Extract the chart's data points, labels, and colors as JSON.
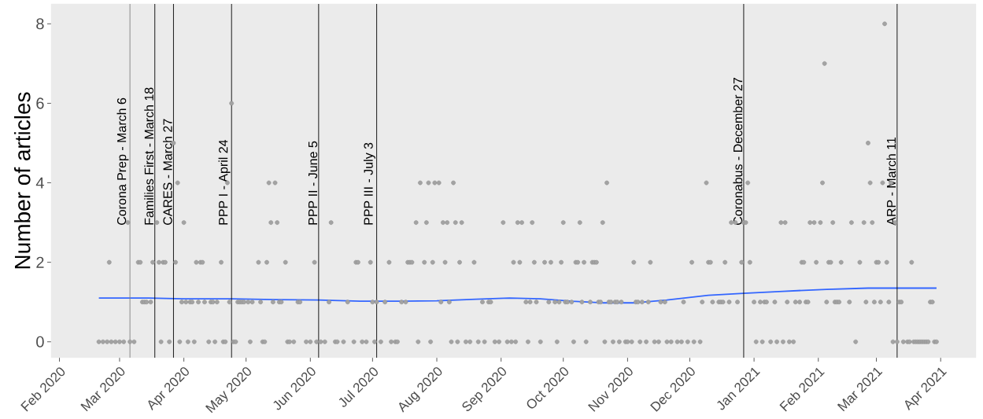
{
  "chart_data": {
    "type": "scatter",
    "ylabel": "Number of articles",
    "xlim": [
      "2020-01-28",
      "2021-04-18"
    ],
    "ylim": [
      -0.4,
      8.5
    ],
    "yticks": [
      0,
      2,
      4,
      6,
      8
    ],
    "xticks": [
      {
        "value": "2020-02-01",
        "label": "Feb 2020"
      },
      {
        "value": "2020-03-01",
        "label": "Mar 2020"
      },
      {
        "value": "2020-04-01",
        "label": "Apr 2020"
      },
      {
        "value": "2020-05-01",
        "label": "May 2020"
      },
      {
        "value": "2020-06-01",
        "label": "Jun 2020"
      },
      {
        "value": "2020-07-01",
        "label": "Jul 2020"
      },
      {
        "value": "2020-08-01",
        "label": "Aug 2020"
      },
      {
        "value": "2020-09-01",
        "label": "Sep 2020"
      },
      {
        "value": "2020-10-01",
        "label": "Oct 2020"
      },
      {
        "value": "2020-11-01",
        "label": "Nov 2020"
      },
      {
        "value": "2020-12-01",
        "label": "Dec 2020"
      },
      {
        "value": "2021-01-01",
        "label": "Jan 2021"
      },
      {
        "value": "2021-02-01",
        "label": "Feb 2021"
      },
      {
        "value": "2021-03-01",
        "label": "Mar 2021"
      },
      {
        "value": "2021-04-01",
        "label": "Apr 2021"
      }
    ],
    "series": [
      {
        "type": "scatter",
        "marker": "circle",
        "color": "#a3a3a3",
        "x": [
          "2020-02-20",
          "2020-02-22",
          "2020-02-24",
          "2020-02-25",
          "2020-02-26",
          "2020-02-28",
          "2020-03-01",
          "2020-03-03",
          "2020-03-05",
          "2020-03-06",
          "2020-03-08",
          "2020-03-10",
          "2020-03-11",
          "2020-03-12",
          "2020-03-13",
          "2020-03-14",
          "2020-03-16",
          "2020-03-17",
          "2020-03-19",
          "2020-03-20",
          "2020-03-21",
          "2020-03-22",
          "2020-03-23",
          "2020-03-25",
          "2020-03-27",
          "2020-03-28",
          "2020-03-29",
          "2020-03-30",
          "2020-03-31",
          "2020-04-01",
          "2020-04-02",
          "2020-04-03",
          "2020-04-04",
          "2020-04-05",
          "2020-04-06",
          "2020-04-07",
          "2020-04-08",
          "2020-04-09",
          "2020-04-10",
          "2020-04-11",
          "2020-04-13",
          "2020-04-14",
          "2020-04-15",
          "2020-04-16",
          "2020-04-17",
          "2020-04-19",
          "2020-04-20",
          "2020-04-21",
          "2020-04-22",
          "2020-04-23",
          "2020-04-24",
          "2020-04-25",
          "2020-04-26",
          "2020-04-27",
          "2020-04-28",
          "2020-04-29",
          "2020-04-30",
          "2020-05-02",
          "2020-05-03",
          "2020-05-04",
          "2020-05-07",
          "2020-05-08",
          "2020-05-09",
          "2020-05-10",
          "2020-05-11",
          "2020-05-12",
          "2020-05-13",
          "2020-05-14",
          "2020-05-15",
          "2020-05-16",
          "2020-05-17",
          "2020-05-18",
          "2020-05-20",
          "2020-05-21",
          "2020-05-22",
          "2020-05-24",
          "2020-05-26",
          "2020-05-27",
          "2020-05-30",
          "2020-06-01",
          "2020-06-03",
          "2020-06-04",
          "2020-06-06",
          "2020-06-08",
          "2020-06-10",
          "2020-06-11",
          "2020-06-13",
          "2020-06-14",
          "2020-06-17",
          "2020-06-19",
          "2020-06-22",
          "2020-06-23",
          "2020-06-24",
          "2020-06-26",
          "2020-06-28",
          "2020-06-30",
          "2020-07-01",
          "2020-07-02",
          "2020-07-03",
          "2020-07-05",
          "2020-07-07",
          "2020-07-09",
          "2020-07-10",
          "2020-07-12",
          "2020-07-13",
          "2020-07-15",
          "2020-07-17",
          "2020-07-18",
          "2020-07-19",
          "2020-07-20",
          "2020-07-22",
          "2020-07-23",
          "2020-07-24",
          "2020-07-26",
          "2020-07-27",
          "2020-07-28",
          "2020-07-29",
          "2020-07-30",
          "2020-07-31",
          "2020-08-02",
          "2020-08-03",
          "2020-08-04",
          "2020-08-05",
          "2020-08-06",
          "2020-08-07",
          "2020-08-08",
          "2020-08-09",
          "2020-08-10",
          "2020-08-11",
          "2020-08-12",
          "2020-08-13",
          "2020-08-15",
          "2020-08-17",
          "2020-08-19",
          "2020-08-21",
          "2020-08-23",
          "2020-08-24",
          "2020-08-26",
          "2020-08-27",
          "2020-08-29",
          "2020-08-31",
          "2020-09-02",
          "2020-09-04",
          "2020-09-06",
          "2020-09-07",
          "2020-09-08",
          "2020-09-09",
          "2020-09-10",
          "2020-09-11",
          "2020-09-13",
          "2020-09-14",
          "2020-09-15",
          "2020-09-16",
          "2020-09-17",
          "2020-09-18",
          "2020-09-20",
          "2020-09-22",
          "2020-09-24",
          "2020-09-25",
          "2020-09-27",
          "2020-09-28",
          "2020-09-29",
          "2020-09-30",
          "2020-10-01",
          "2020-10-02",
          "2020-10-03",
          "2020-10-05",
          "2020-10-06",
          "2020-10-07",
          "2020-10-08",
          "2020-10-09",
          "2020-10-10",
          "2020-10-11",
          "2020-10-12",
          "2020-10-14",
          "2020-10-15",
          "2020-10-16",
          "2020-10-17",
          "2020-10-18",
          "2020-10-19",
          "2020-10-20",
          "2020-10-21",
          "2020-10-22",
          "2020-10-23",
          "2020-10-24",
          "2020-10-25",
          "2020-10-26",
          "2020-10-27",
          "2020-10-28",
          "2020-10-29",
          "2020-10-31",
          "2020-11-01",
          "2020-11-03",
          "2020-11-04",
          "2020-11-05",
          "2020-11-06",
          "2020-11-07",
          "2020-11-08",
          "2020-11-10",
          "2020-11-11",
          "2020-11-12",
          "2020-11-14",
          "2020-11-16",
          "2020-11-17",
          "2020-11-19",
          "2020-11-20",
          "2020-11-22",
          "2020-11-25",
          "2020-11-27",
          "2020-11-28",
          "2020-11-30",
          "2020-12-02",
          "2020-12-03",
          "2020-12-06",
          "2020-12-07",
          "2020-12-09",
          "2020-12-10",
          "2020-12-11",
          "2020-12-12",
          "2020-12-15",
          "2020-12-16",
          "2020-12-17",
          "2020-12-18",
          "2020-12-20",
          "2020-12-21",
          "2020-12-23",
          "2020-12-24",
          "2020-12-26",
          "2020-12-27",
          "2020-12-28",
          "2020-12-29",
          "2020-12-30",
          "2021-01-01",
          "2021-01-02",
          "2021-01-04",
          "2021-01-05",
          "2021-01-06",
          "2021-01-07",
          "2021-01-09",
          "2021-01-11",
          "2021-01-12",
          "2021-01-14",
          "2021-01-15",
          "2021-01-16",
          "2021-01-17",
          "2021-01-18",
          "2021-01-20",
          "2021-01-21",
          "2021-01-23",
          "2021-01-24",
          "2021-01-25",
          "2021-01-26",
          "2021-01-27",
          "2021-01-28",
          "2021-01-30",
          "2021-01-31",
          "2021-02-02",
          "2021-02-03",
          "2021-02-04",
          "2021-02-05",
          "2021-02-06",
          "2021-02-07",
          "2021-02-08",
          "2021-02-09",
          "2021-02-10",
          "2021-02-11",
          "2021-02-12",
          "2021-02-16",
          "2021-02-17",
          "2021-02-19",
          "2021-02-21",
          "2021-02-23",
          "2021-02-24",
          "2021-02-25",
          "2021-02-26",
          "2021-02-27",
          "2021-02-28",
          "2021-03-01",
          "2021-03-02",
          "2021-03-03",
          "2021-03-04",
          "2021-03-05",
          "2021-03-06",
          "2021-03-07",
          "2021-03-08",
          "2021-03-09",
          "2021-03-10",
          "2021-03-11",
          "2021-03-12",
          "2021-03-13",
          "2021-03-14",
          "2021-03-16",
          "2021-03-17",
          "2021-03-18",
          "2021-03-19",
          "2021-03-20",
          "2021-03-21",
          "2021-03-22",
          "2021-03-23",
          "2021-03-24",
          "2021-03-25",
          "2021-03-26",
          "2021-03-27",
          "2021-03-28",
          "2021-03-29",
          "2021-03-30"
        ],
        "values": [
          0,
          0,
          0,
          2,
          0,
          0,
          0,
          0,
          3,
          0,
          0,
          2,
          2,
          1,
          1,
          1,
          1,
          2,
          3,
          2,
          0,
          2,
          2,
          0,
          5,
          2,
          4,
          0,
          1,
          3,
          1,
          0,
          1,
          1,
          0,
          2,
          1,
          2,
          2,
          1,
          0,
          1,
          1,
          0,
          1,
          2,
          0,
          0,
          4,
          1,
          6,
          0,
          0,
          1,
          1,
          1,
          1,
          1,
          0,
          1,
          2,
          1,
          0,
          0,
          2,
          4,
          3,
          1,
          4,
          3,
          1,
          1,
          2,
          0,
          0,
          0,
          1,
          1,
          0,
          0,
          2,
          0,
          0,
          0,
          1,
          3,
          0,
          0,
          0,
          1,
          0,
          2,
          2,
          0,
          0,
          2,
          1,
          0,
          1,
          0,
          1,
          2,
          0,
          0,
          0,
          1,
          1,
          2,
          2,
          2,
          3,
          0,
          4,
          2,
          3,
          4,
          0,
          2,
          4,
          4,
          1,
          3,
          2,
          3,
          1,
          0,
          4,
          3,
          0,
          2,
          3,
          0,
          0,
          2,
          0,
          1,
          0,
          1,
          1,
          0,
          0,
          3,
          0,
          0,
          2,
          0,
          3,
          2,
          3,
          1,
          0,
          1,
          3,
          2,
          1,
          0,
          2,
          1,
          2,
          1,
          0,
          1,
          2,
          3,
          1,
          1,
          1,
          0,
          2,
          2,
          3,
          1,
          2,
          0,
          1,
          2,
          2,
          2,
          1,
          1,
          3,
          0,
          4,
          1,
          1,
          0,
          1,
          1,
          0,
          1,
          0,
          0,
          0,
          2,
          1,
          1,
          0,
          1,
          0,
          1,
          2,
          0,
          0,
          1,
          1,
          0,
          0,
          0,
          0,
          1,
          0,
          2,
          0,
          0,
          1,
          4,
          2,
          2,
          1,
          1,
          1,
          1,
          2,
          1,
          3,
          3,
          1,
          2,
          3,
          3,
          4,
          2,
          1,
          0,
          1,
          0,
          1,
          1,
          0,
          1,
          0,
          3,
          0,
          3,
          1,
          0,
          0,
          1,
          1,
          2,
          2,
          1,
          1,
          3,
          3,
          2,
          3,
          4,
          7,
          1,
          2,
          2,
          3,
          1,
          1,
          1,
          2,
          1,
          3,
          0,
          2,
          3,
          1,
          5,
          4,
          3,
          1,
          2,
          2,
          1,
          4,
          8,
          2,
          1,
          4,
          0,
          3,
          0,
          1,
          1,
          0,
          0,
          0,
          2,
          0,
          0,
          0,
          0,
          0,
          0,
          0,
          0,
          1,
          1,
          0,
          0
        ]
      },
      {
        "type": "line",
        "marker": "none",
        "color": "#3366ff",
        "x": [
          "2020-02-20",
          "2020-03-15",
          "2020-04-01",
          "2020-04-24",
          "2020-05-15",
          "2020-06-05",
          "2020-06-25",
          "2020-07-15",
          "2020-08-01",
          "2020-08-20",
          "2020-09-05",
          "2020-09-20",
          "2020-10-05",
          "2020-10-20",
          "2020-11-05",
          "2020-11-20",
          "2020-12-10",
          "2020-12-27",
          "2021-01-15",
          "2021-02-05",
          "2021-02-25",
          "2021-03-30"
        ],
        "values": [
          1.1,
          1.1,
          1.08,
          1.08,
          1.06,
          1.05,
          1.02,
          1.02,
          1.03,
          1.07,
          1.1,
          1.08,
          1.02,
          0.98,
          0.98,
          1.05,
          1.17,
          1.22,
          1.27,
          1.32,
          1.35,
          1.35
        ]
      }
    ],
    "ref_lines": [
      {
        "axis": "x",
        "value": "2020-03-06",
        "label": "Corona Prep - March 6",
        "color": "#808080"
      },
      {
        "axis": "x",
        "value": "2020-03-18",
        "label": "Families First - March 18",
        "color": "#000000"
      },
      {
        "axis": "x",
        "value": "2020-03-27",
        "label": "CARES - March 27",
        "color": "#000000"
      },
      {
        "axis": "x",
        "value": "2020-04-24",
        "label": "PPP I - April 24",
        "color": "#000000"
      },
      {
        "axis": "x",
        "value": "2020-06-05",
        "label": "PPP II - June 5",
        "color": "#000000"
      },
      {
        "axis": "x",
        "value": "2020-07-03",
        "label": "PPP III - July 3",
        "color": "#000000"
      },
      {
        "axis": "x",
        "value": "2020-12-27",
        "label": "Coronabus - December 27",
        "color": "#000000"
      },
      {
        "axis": "x",
        "value": "2021-03-11",
        "label": "ARP - March 11",
        "color": "#000000"
      }
    ]
  }
}
